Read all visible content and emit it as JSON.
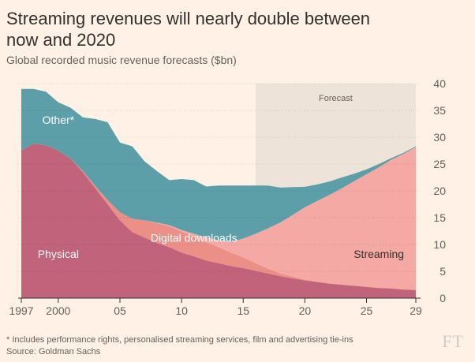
{
  "title": "Streaming revenues will nearly double between now and 2020",
  "subtitle": "Global recorded music revenue forecasts ($bn)",
  "footnote": "* Includes performance rights, personalised streaming services, film and advertising tie-ins",
  "source": "Source: Goldman Sachs",
  "logo": "FT",
  "chart_data": {
    "type": "area",
    "stacked": true,
    "x": [
      1997,
      1998,
      1999,
      2000,
      2001,
      2002,
      2003,
      2004,
      2005,
      2006,
      2007,
      2008,
      2009,
      2010,
      2011,
      2012,
      2013,
      2014,
      2015,
      2016,
      2017,
      2018,
      2019,
      2020,
      2021,
      2022,
      2023,
      2024,
      2025,
      2026,
      2027,
      2028,
      2029
    ],
    "series": [
      {
        "name": "Physical",
        "color": "#c1637a",
        "values": [
          27.5,
          28.8,
          28.5,
          27.5,
          26.0,
          23.5,
          20.5,
          17.5,
          14.5,
          12.3,
          11.3,
          10.3,
          9.5,
          8.5,
          7.8,
          7.0,
          6.5,
          6.0,
          5.6,
          5.1,
          4.6,
          4.1,
          3.7,
          3.3,
          3.0,
          2.7,
          2.5,
          2.3,
          2.1,
          1.9,
          1.8,
          1.6,
          1.5
        ]
      },
      {
        "name": "Digital downloads",
        "color": "#eb8f87",
        "values": [
          0,
          0,
          0,
          0,
          0,
          0.2,
          0.4,
          0.8,
          1.5,
          2.5,
          3.2,
          3.7,
          3.9,
          3.9,
          3.7,
          3.4,
          3.0,
          2.5,
          2.0,
          1.4,
          0.9,
          0.5,
          0.3,
          0.15,
          0.1,
          0.05,
          0,
          0,
          0,
          0,
          0,
          0,
          0
        ]
      },
      {
        "name": "Streaming",
        "color": "#f4a9a4",
        "values": [
          0,
          0,
          0,
          0,
          0,
          0,
          0,
          0,
          0,
          0,
          0,
          0.1,
          0.2,
          0.3,
          0.5,
          0.9,
          1.3,
          2.0,
          3.5,
          5.5,
          7.5,
          9.5,
          11.5,
          13.5,
          15.0,
          16.5,
          18.0,
          19.5,
          21.0,
          22.5,
          24.0,
          25.3,
          26.7
        ]
      },
      {
        "name": "Other*",
        "color": "#5d9fa8",
        "values": [
          11.5,
          10.2,
          10.0,
          9.0,
          9.5,
          10.0,
          12.5,
          14.5,
          13.0,
          13.5,
          11.0,
          9.6,
          8.4,
          9.5,
          10.0,
          9.5,
          10.2,
          10.5,
          9.9,
          9.0,
          8.0,
          6.5,
          5.2,
          3.8,
          3.1,
          2.5,
          2.0,
          1.4,
          0.9,
          0.6,
          0.3,
          0.2,
          0.1
        ]
      }
    ],
    "forecast": {
      "label": "Forecast",
      "start": 2016,
      "end": 2029
    },
    "ylim": [
      0,
      40
    ],
    "yticks": [
      0,
      5,
      10,
      15,
      20,
      25,
      30,
      35,
      40
    ],
    "xticks": [
      {
        "value": 1997,
        "label": "1997"
      },
      {
        "value": 2000,
        "label": "2000"
      },
      {
        "value": 2005,
        "label": "05"
      },
      {
        "value": 2010,
        "label": "10"
      },
      {
        "value": 2015,
        "label": "15"
      },
      {
        "value": 2020,
        "label": "20"
      },
      {
        "value": 2025,
        "label": "25"
      },
      {
        "value": 2029,
        "label": "29"
      }
    ],
    "grid": true,
    "annotations": [
      {
        "text": "Other*",
        "x": 2000,
        "y": 32.5
      },
      {
        "text": "Physical",
        "x": 2000,
        "y": 7.5
      },
      {
        "text": "Digital downloads",
        "x": 2011,
        "y": 10.5
      },
      {
        "text": "Streaming",
        "x": 2026,
        "y": 7.5
      }
    ]
  }
}
